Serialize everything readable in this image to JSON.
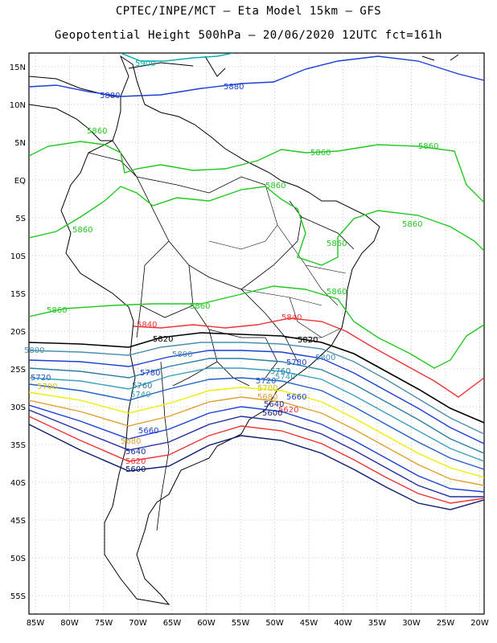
{
  "header": {
    "line1": "CPTEC/INPE/MCT –  Eta Model 15km – GFS",
    "line2": "Geopotential Height 500hPa – 20/06/2020 12UTC fct=161h"
  },
  "map": {
    "lat_ticks": [
      "15N",
      "10N",
      "5N",
      "EQ",
      "5S",
      "10S",
      "15S",
      "20S",
      "25S",
      "30S",
      "35S",
      "40S",
      "45S",
      "50S",
      "55S"
    ],
    "lon_ticks": [
      "85W",
      "80W",
      "75W",
      "70W",
      "65W",
      "60W",
      "55W",
      "50W",
      "45W",
      "40W",
      "35W",
      "30W",
      "25W",
      "20W"
    ],
    "contours": [
      {
        "level": "5900",
        "color": "#00b0b0"
      },
      {
        "level": "5880",
        "color": "#1a3fd6"
      },
      {
        "level": "5860",
        "color": "#20c820"
      },
      {
        "level": "5840",
        "color": "#ee3333"
      },
      {
        "level": "5820",
        "color": "#000000"
      },
      {
        "level": "5800",
        "color": "#4a8fb0"
      },
      {
        "level": "5780",
        "color": "#1a3fd6"
      },
      {
        "level": "5760",
        "color": "#2a7fa8"
      },
      {
        "level": "5740",
        "color": "#3aa0c0"
      },
      {
        "level": "5720",
        "color": "#2060c8"
      },
      {
        "level": "5700",
        "color": "#eeee00"
      },
      {
        "level": "5680",
        "color": "#e0a030"
      },
      {
        "level": "5660",
        "color": "#1a3fd6"
      },
      {
        "level": "5640",
        "color": "#2030a0"
      },
      {
        "level": "5620",
        "color": "#ee3333"
      },
      {
        "level": "5600",
        "color": "#0a1a70"
      }
    ],
    "labels": {
      "l5900": "5900",
      "l5880a": "5880",
      "l5880b": "5880",
      "l5860a": "5860",
      "l5860b": "5860",
      "l5860c": "5860",
      "l5860d": "5860",
      "l5860e": "5860",
      "l5860f": "5860",
      "l5860g": "5860",
      "l5860h": "5860",
      "l5860i": "5860",
      "l5860j": "5860",
      "l5840a": "5840",
      "l5840b": "5840",
      "l5820a": "5820",
      "l5820b": "5820",
      "l5800a": "5800",
      "l5800b": "5800",
      "l5800c": "5800",
      "l5780a": "5780",
      "l5780b": "5780",
      "l5760a": "5760",
      "l5760b": "5760",
      "l5740a": "5740",
      "l5740b": "5740",
      "l5720a": "5720",
      "l5720b": "5720",
      "l5700a": "5700",
      "l5700b": "5700",
      "l5680a": "5680",
      "l5680b": "5680",
      "l5660a": "5660",
      "l5660b": "5660",
      "l5640a": "5640",
      "l5640b": "5640",
      "l5620a": "5620",
      "l5620b": "5620",
      "l5600a": "5600",
      "l5600b": "5600"
    }
  }
}
